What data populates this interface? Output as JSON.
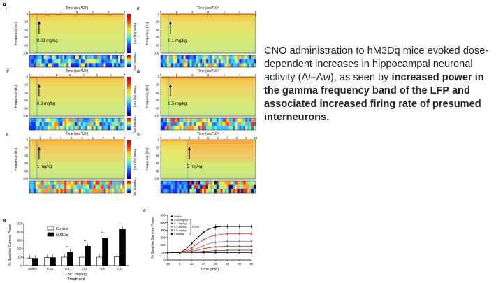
{
  "figure_label_A": "A",
  "figure_label_B": "B",
  "figure_label_C": "C",
  "time_axis_label": "Time (sec*10³)",
  "freq_axis_label": "Frequency (Hz)",
  "colorbar_label": "Power (log mV²)",
  "raster_bar_label": "Frequency (Hz)",
  "panels": [
    {
      "roman": "i",
      "dose": "0.03 mg/kg"
    },
    {
      "roman": "ii",
      "dose": "0.1 mg/kg"
    },
    {
      "roman": "iii",
      "dose": "0.3 mg/kg"
    },
    {
      "roman": "iv",
      "dose": "0.5 mg/kg"
    },
    {
      "roman": "v",
      "dose": "1 mg/kg"
    },
    {
      "roman": "vi",
      "dose": "5 mg/kg"
    }
  ],
  "freq_ticks": [
    "0",
    "20",
    "40",
    "60",
    "80",
    "100"
  ],
  "time_ticks_short": [
    "0",
    "1",
    "2",
    "3",
    "4",
    "5",
    "6"
  ],
  "time_ticks_long": [
    "0",
    "1",
    "2",
    "3",
    "4",
    "5",
    "6",
    "7",
    "8",
    "9",
    "10"
  ],
  "caption": {
    "normal_1": "CNO administration to hM3Dq mice evoked dose-dependent increases in hippocampal neuronal activity (A",
    "italic_1": "i",
    "normal_2": "–A",
    "italic_2": "vi",
    "normal_3": "), as seen by ",
    "bold": "increased power in the gamma frequency band of the LFP and associated increased firing rate of presumed interneurons."
  },
  "chart_data": [
    {
      "type": "bar",
      "title": "",
      "xlabel": "CNO (mg/kg) Treatment",
      "ylabel": "% Baseline Gamma Power",
      "ylim": [
        0,
        500
      ],
      "y_ticks": [
        "0",
        "100",
        "200",
        "300",
        "400",
        "500"
      ],
      "categories": [
        "Saline",
        "0.03",
        "0.1",
        "0.3",
        "0.5",
        "5.0"
      ],
      "series": [
        {
          "name": "Control",
          "values": [
            90,
            95,
            100,
            100,
            100,
            105
          ],
          "color": "#ffffff"
        },
        {
          "name": "hM3Dq",
          "values": [
            85,
            95,
            160,
            230,
            330,
            430
          ],
          "color": "#000000"
        }
      ],
      "significance": [
        "",
        "",
        "**",
        "**",
        "**",
        "**"
      ],
      "legend": "top-left"
    },
    {
      "type": "line",
      "title": "",
      "xlabel": "Time (min)",
      "ylabel": "% Baseline Gamma Power",
      "xlim": [
        -10,
        60
      ],
      "ylim": [
        0,
        600
      ],
      "x_ticks": [
        "-10",
        "0",
        "10",
        "20",
        "30",
        "40",
        "50",
        "60"
      ],
      "y_ticks": [
        "0",
        "100",
        "200",
        "300",
        "400",
        "500",
        "600"
      ],
      "x": [
        -10,
        -5,
        0,
        5,
        10,
        15,
        20,
        25,
        30,
        35,
        40,
        45,
        50,
        55,
        60
      ],
      "series": [
        {
          "name": "Saline",
          "color": "#000000",
          "values": [
            100,
            100,
            100,
            100,
            100,
            100,
            100,
            100,
            100,
            100,
            100,
            100,
            100,
            100,
            100
          ]
        },
        {
          "name": "0.03 mg/kg",
          "color": "#555555",
          "values": [
            100,
            100,
            100,
            100,
            105,
            110,
            115,
            120,
            125,
            125,
            130,
            130,
            130,
            130,
            130
          ]
        },
        {
          "name": "0.1 mg/kg",
          "color": "#c0392b",
          "values": [
            100,
            100,
            100,
            105,
            115,
            130,
            150,
            165,
            175,
            180,
            185,
            185,
            185,
            185,
            185
          ]
        },
        {
          "name": "0.3 mg/kg",
          "color": "#888888",
          "values": [
            100,
            100,
            100,
            110,
            130,
            160,
            195,
            220,
            235,
            245,
            250,
            250,
            250,
            250,
            250
          ]
        },
        {
          "name": "0.5 mg/kg",
          "color": "#e04040",
          "values": [
            100,
            100,
            100,
            120,
            160,
            220,
            270,
            310,
            330,
            345,
            350,
            350,
            350,
            350,
            350
          ]
        },
        {
          "name": "5 mg/kg",
          "color": "#000000",
          "values": [
            100,
            100,
            100,
            140,
            220,
            300,
            370,
            420,
            440,
            450,
            450,
            450,
            450,
            450,
            450
          ]
        }
      ],
      "legend_group_label": "CNO",
      "legend": "top-left"
    }
  ]
}
